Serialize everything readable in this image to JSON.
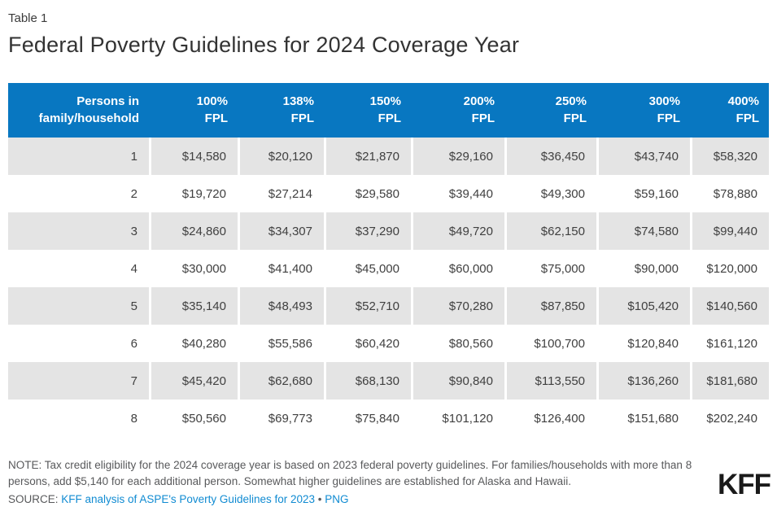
{
  "header": {
    "table_label": "Table 1",
    "title": "Federal Poverty Guidelines for 2024 Coverage Year"
  },
  "chart_data": {
    "type": "table",
    "title": "Federal Poverty Guidelines for 2024 Coverage Year",
    "columns": [
      "Persons in\nfamily/household",
      "100%\nFPL",
      "138%\nFPL",
      "150%\nFPL",
      "200%\nFPL",
      "250%\nFPL",
      "300%\nFPL",
      "400%\nFPL"
    ],
    "rows": [
      [
        "1",
        "$14,580",
        "$20,120",
        "$21,870",
        "$29,160",
        "$36,450",
        "$43,740",
        "$58,320"
      ],
      [
        "2",
        "$19,720",
        "$27,214",
        "$29,580",
        "$39,440",
        "$49,300",
        "$59,160",
        "$78,880"
      ],
      [
        "3",
        "$24,860",
        "$34,307",
        "$37,290",
        "$49,720",
        "$62,150",
        "$74,580",
        "$99,440"
      ],
      [
        "4",
        "$30,000",
        "$41,400",
        "$45,000",
        "$60,000",
        "$75,000",
        "$90,000",
        "$120,000"
      ],
      [
        "5",
        "$35,140",
        "$48,493",
        "$52,710",
        "$70,280",
        "$87,850",
        "$105,420",
        "$140,560"
      ],
      [
        "6",
        "$40,280",
        "$55,586",
        "$60,420",
        "$80,560",
        "$100,700",
        "$120,840",
        "$161,120"
      ],
      [
        "7",
        "$45,420",
        "$62,680",
        "$68,130",
        "$90,840",
        "$113,550",
        "$136,260",
        "$181,680"
      ],
      [
        "8",
        "$50,560",
        "$69,773",
        "$75,840",
        "$101,120",
        "$126,400",
        "$151,680",
        "$202,240"
      ]
    ]
  },
  "footer": {
    "note": "NOTE: Tax credit eligibility for the 2024 coverage year is based on 2023 federal poverty guidelines. For families/households with more than 8 persons, add $5,140 for each additional person. Somewhat higher guidelines are established for Alaska and Hawaii.",
    "source_label": "SOURCE:",
    "source_link_text": "KFF analysis of ASPE's Poverty Guidelines for 2023",
    "separator": "•",
    "png_link_text": "PNG",
    "logo_text": "KFF"
  },
  "colors": {
    "header_bg": "#0877C1",
    "alt_row_bg": "#E4E4E4",
    "link": "#108BD2",
    "body_text": "#404040",
    "note_text": "#58595B",
    "logo": "#1A1A1A"
  }
}
